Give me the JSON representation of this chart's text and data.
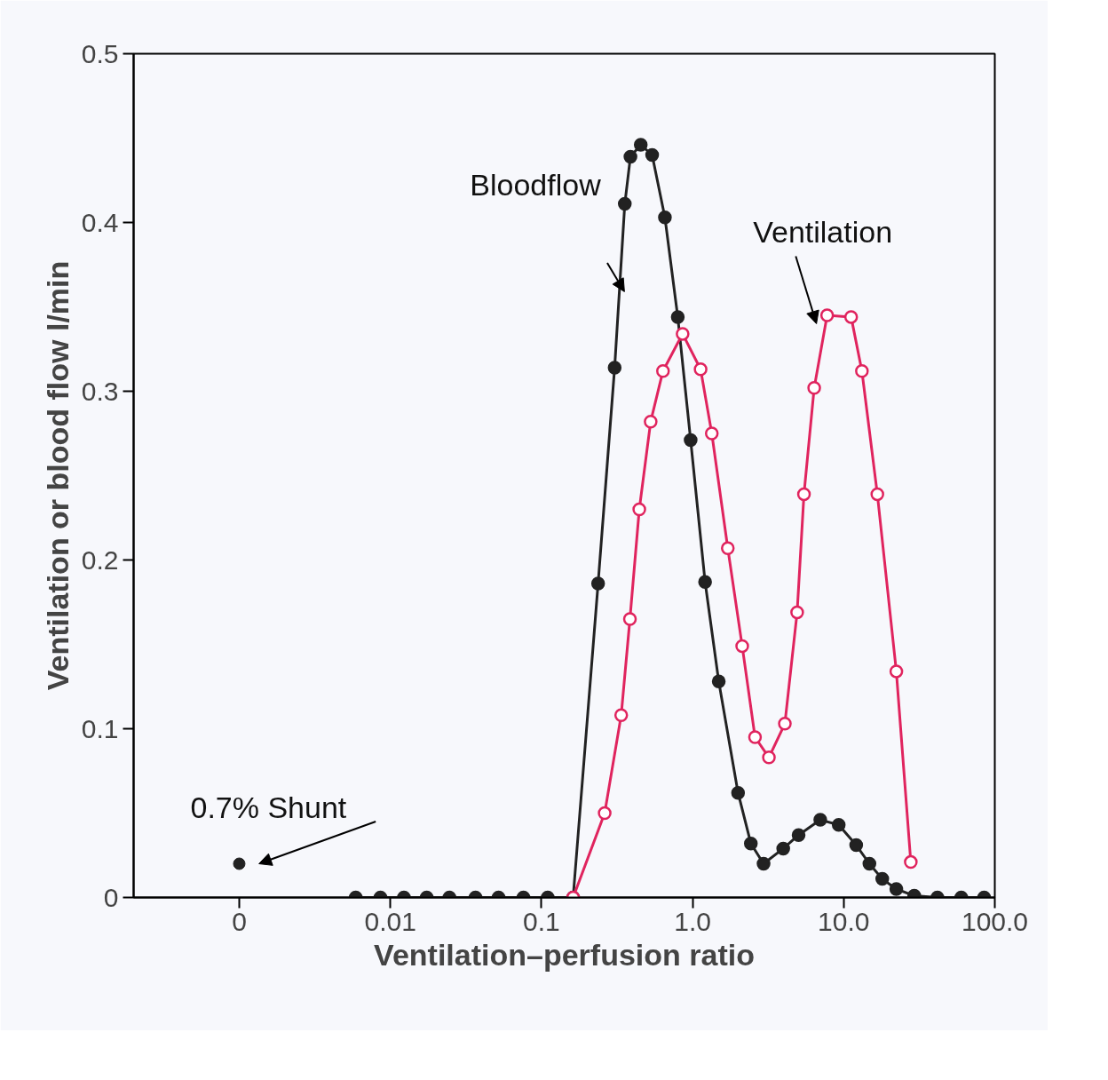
{
  "chart_data": {
    "type": "line",
    "xlabel": "Ventilation–perfusion ratio",
    "ylabel": "Ventilation or blood flow l/min",
    "log": "x",
    "xlim": [
      0.0002,
      100
    ],
    "ylim": [
      0,
      0.5
    ],
    "xticks": [
      {
        "value": 0.001,
        "label": "0"
      },
      0.01,
      0.1,
      {
        "value": 1,
        "label": "1.0"
      },
      {
        "value": 10,
        "label": "10.0"
      },
      {
        "value": 100,
        "label": "100.0"
      }
    ],
    "yticks": [
      0,
      0.1,
      0.2,
      0.3,
      0.4,
      0.5
    ],
    "grid": false,
    "marker": "circle",
    "line_style": "solid",
    "series": [
      {
        "name": "Bloodflow",
        "color": "#222222",
        "x": [
          0.0059,
          0.0086,
          0.0123,
          0.0174,
          0.0246,
          0.0366,
          0.052,
          0.076,
          0.11,
          0.162,
          0.237,
          0.305,
          0.356,
          0.388,
          0.454,
          0.54,
          0.656,
          0.798,
          0.971,
          1.21,
          1.49,
          2.0,
          2.43,
          2.95,
          3.98,
          5.03,
          7.0,
          9.27,
          12.1,
          14.8,
          18.0,
          22.3,
          29.3,
          41.7,
          60,
          85
        ],
        "values": [
          0,
          0,
          0,
          0,
          0,
          0,
          0,
          0,
          0,
          0,
          0.186,
          0.314,
          0.411,
          0.439,
          0.446,
          0.44,
          0.403,
          0.344,
          0.271,
          0.187,
          0.128,
          0.062,
          0.032,
          0.02,
          0.029,
          0.037,
          0.046,
          0.043,
          0.031,
          0.02,
          0.011,
          0.005,
          0.001,
          0,
          0,
          0
        ]
      },
      {
        "name": "Ventilation",
        "color": "#e0245e",
        "x": [
          0.162,
          0.262,
          0.337,
          0.385,
          0.444,
          0.528,
          0.637,
          0.859,
          1.13,
          1.34,
          1.71,
          2.13,
          2.59,
          3.2,
          4.08,
          4.92,
          5.46,
          6.38,
          7.77,
          11.2,
          13.2,
          16.7,
          22.3,
          27.8
        ],
        "values": [
          0,
          0.05,
          0.108,
          0.165,
          0.23,
          0.282,
          0.312,
          0.334,
          0.313,
          0.275,
          0.207,
          0.149,
          0.095,
          0.083,
          0.103,
          0.169,
          0.239,
          0.302,
          0.345,
          0.344,
          0.312,
          0.239,
          0.134,
          0.021
        ]
      },
      {
        "type": "scatter",
        "color": "#222222",
        "x": [
          0.001
        ],
        "values": [
          0.02
        ]
      }
    ],
    "annotations": [
      {
        "text": "0.7% Shunt",
        "x": 0.001,
        "y": 0.02
      }
    ]
  }
}
